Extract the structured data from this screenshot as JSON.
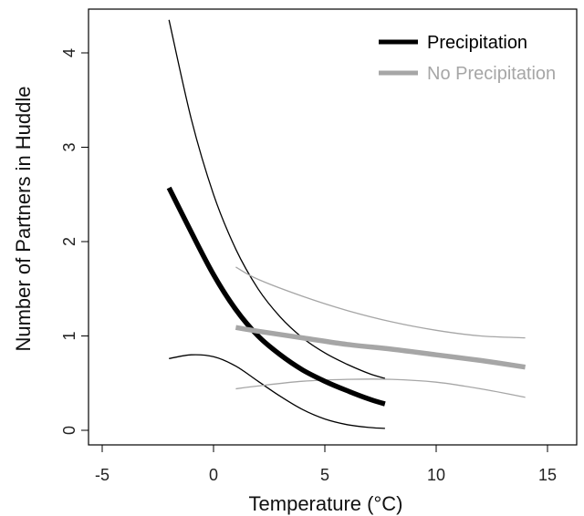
{
  "chart_data": {
    "type": "line",
    "xlabel": "Temperature (°C)",
    "ylabel": "Number of Partners in Huddle",
    "xlim": [
      -5,
      15
    ],
    "ylim": [
      0,
      4
    ],
    "x_ticks": [
      "-5",
      "0",
      "5",
      "10",
      "15"
    ],
    "y_ticks": [
      "0",
      "1",
      "2",
      "3",
      "4"
    ],
    "legend_position": "top-right",
    "series": [
      {
        "name": "Precipitation",
        "color": "#000000",
        "x": [
          -2,
          -1,
          0,
          1,
          2,
          3,
          4,
          5,
          6,
          7,
          7.7
        ],
        "y": [
          2.57,
          2.1,
          1.65,
          1.28,
          1.0,
          0.8,
          0.64,
          0.52,
          0.42,
          0.33,
          0.28
        ],
        "lower": [
          0.76,
          0.8,
          0.78,
          0.68,
          0.52,
          0.36,
          0.22,
          0.12,
          0.06,
          0.03,
          0.02
        ],
        "upper": [
          4.35,
          3.3,
          2.5,
          1.92,
          1.5,
          1.2,
          0.98,
          0.82,
          0.7,
          0.6,
          0.55
        ]
      },
      {
        "name": "No Precipitation",
        "color": "#a6a6a6",
        "x": [
          1,
          2,
          4,
          6,
          8,
          10,
          12,
          14
        ],
        "y": [
          1.09,
          1.05,
          0.98,
          0.91,
          0.86,
          0.8,
          0.74,
          0.67
        ],
        "lower": [
          0.44,
          0.47,
          0.52,
          0.54,
          0.54,
          0.51,
          0.44,
          0.35
        ],
        "upper": [
          1.73,
          1.6,
          1.42,
          1.27,
          1.15,
          1.06,
          1.0,
          0.98
        ]
      }
    ]
  }
}
